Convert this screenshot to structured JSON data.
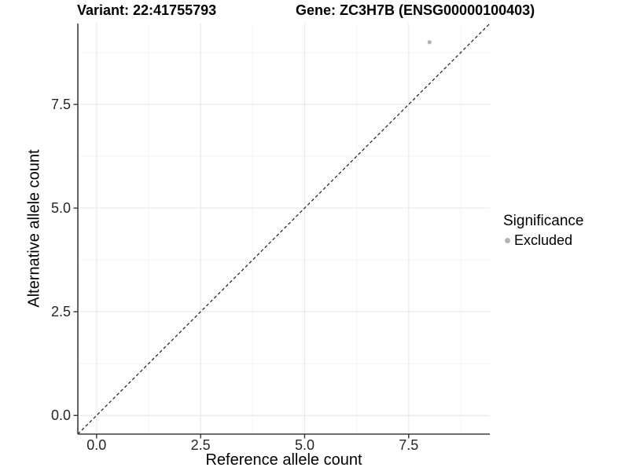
{
  "figure": {
    "title_left": "Variant: 22:41755793",
    "title_right": "Gene: ZC3H7B (ENSG00000100403)"
  },
  "chart_data": {
    "type": "scatter",
    "xlabel": "Reference allele count",
    "ylabel": "Alternative allele count",
    "xlim": [
      -0.45,
      9.45
    ],
    "ylim": [
      -0.45,
      9.45
    ],
    "x_breaks": [
      0,
      2.5,
      5,
      7.5
    ],
    "x_tick_labels": [
      "0.0",
      "2.5",
      "5.0",
      "7.5"
    ],
    "x_minor_breaks": [
      1.25,
      3.75,
      6.25,
      8.75
    ],
    "y_breaks": [
      0,
      2.5,
      5,
      7.5
    ],
    "y_tick_labels": [
      "0.0",
      "2.5",
      "5.0",
      "7.5"
    ],
    "y_minor_breaks": [
      1.25,
      3.75,
      6.25,
      8.75
    ],
    "grid": true,
    "series": [
      {
        "name": "Excluded",
        "color": "#b4b4b4",
        "points": [
          {
            "x": 8,
            "y": 9
          }
        ]
      }
    ],
    "reference_line": {
      "type": "identity",
      "slope": 1,
      "intercept": 0,
      "style": "dashed",
      "color": "#1c1c1c"
    },
    "legend": {
      "title": "Significance",
      "position": "right",
      "items": [
        {
          "label": "Excluded",
          "color": "#b4b4b4",
          "marker": "circle"
        }
      ]
    },
    "colors": {
      "background": "#ffffff",
      "grid_major": "#e9e9e9",
      "grid_minor": "#f4f4f4",
      "axis_line": "#3c3c3c",
      "tick_mark": "#333333",
      "tick_text": "#262626",
      "title_text": "#000000"
    }
  }
}
